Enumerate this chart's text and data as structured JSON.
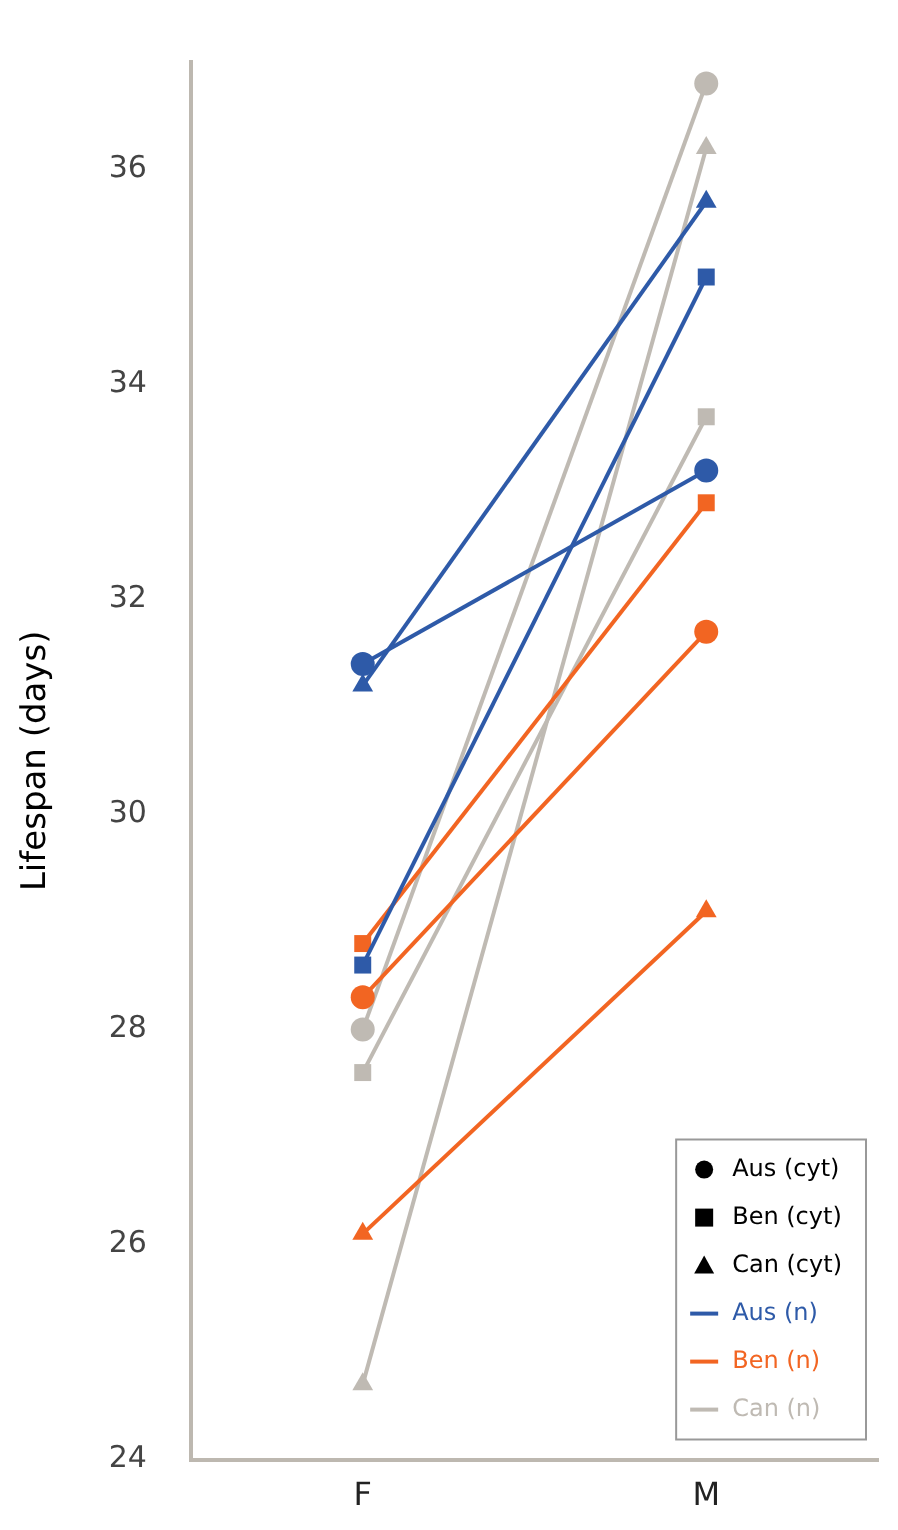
{
  "chart_data": {
    "type": "line",
    "ylabel": "Lifespan (days)",
    "categories": [
      "F",
      "M"
    ],
    "ylim": [
      24,
      37
    ],
    "yticks": [
      24,
      26,
      28,
      30,
      32,
      34,
      36
    ],
    "grid": false,
    "legend": "bottom right",
    "series": [
      {
        "color": "#2e5aa8",
        "marker": "circle",
        "values": [
          31.4,
          33.2
        ]
      },
      {
        "color": "#2e5aa8",
        "marker": "square",
        "values": [
          28.6,
          35.0
        ]
      },
      {
        "color": "#2e5aa8",
        "marker": "triangle",
        "values": [
          31.2,
          35.7
        ]
      },
      {
        "color": "#f26522",
        "marker": "circle",
        "values": [
          28.3,
          31.7
        ]
      },
      {
        "color": "#f26522",
        "marker": "square",
        "values": [
          28.8,
          32.9
        ]
      },
      {
        "color": "#f26522",
        "marker": "triangle",
        "values": [
          26.1,
          29.1
        ]
      },
      {
        "color": "#bfbab3",
        "marker": "circle",
        "values": [
          28.0,
          36.8
        ]
      },
      {
        "color": "#bfbab3",
        "marker": "square",
        "values": [
          27.6,
          33.7
        ]
      },
      {
        "color": "#bfbab3",
        "marker": "triangle",
        "values": [
          24.7,
          36.2
        ]
      },
      {
        "name": "Aus (cyt)",
        "color": "#000000",
        "marker": "circle",
        "line_style": "none",
        "values": [
          null,
          null
        ]
      },
      {
        "name": "Ben (cyt)",
        "color": "#000000",
        "marker": "square",
        "line_style": "none",
        "values": [
          null,
          null
        ]
      },
      {
        "name": "Can (cyt)",
        "color": "#000000",
        "marker": "triangle",
        "line_style": "none",
        "values": [
          null,
          null
        ]
      },
      {
        "name": "Aus (n)",
        "color": "#2e5aa8",
        "marker": "none",
        "line_style": "solid",
        "values": [
          null,
          null
        ]
      },
      {
        "name": "Ben (n)",
        "color": "#f26522",
        "marker": "none",
        "line_style": "solid",
        "values": [
          null,
          null
        ]
      },
      {
        "name": "Can (n)",
        "color": "#bfbab3",
        "marker": "none",
        "line_style": "solid",
        "values": [
          null,
          null
        ]
      }
    ]
  }
}
